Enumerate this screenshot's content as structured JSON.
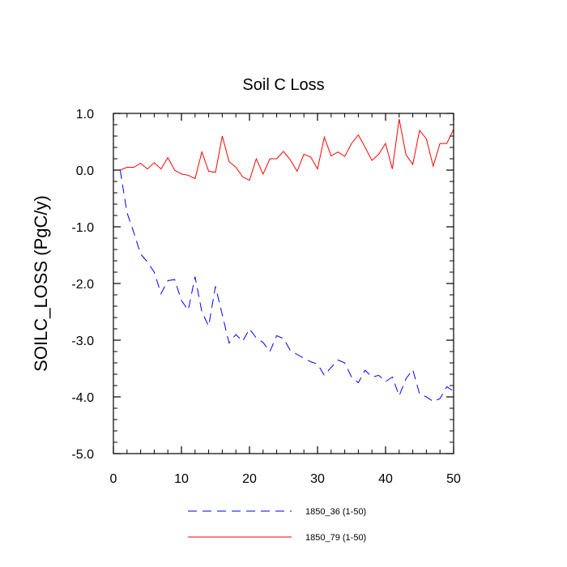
{
  "chart_data": {
    "type": "line",
    "title": "Soil C Loss",
    "xlabel": "",
    "ylabel": "SOILC_LOSS  (PgC/y)",
    "xlim": [
      0,
      50
    ],
    "ylim": [
      -5.0,
      1.0
    ],
    "xticks": [
      0,
      10,
      20,
      30,
      40,
      50
    ],
    "xtick_labels": [
      "0",
      "10",
      "20",
      "30",
      "40",
      "50"
    ],
    "yticks": [
      1.0,
      0.0,
      -1.0,
      -2.0,
      -3.0,
      -4.0,
      -5.0
    ],
    "ytick_labels": [
      "1.0",
      "0.0",
      "-1.0",
      "-2.0",
      "-3.0",
      "-4.0",
      "-5.0"
    ],
    "grid": false,
    "legend_position": "bottom",
    "x": [
      1,
      2,
      3,
      4,
      5,
      6,
      7,
      8,
      9,
      10,
      11,
      12,
      13,
      14,
      15,
      16,
      17,
      18,
      19,
      20,
      21,
      22,
      23,
      24,
      25,
      26,
      27,
      28,
      29,
      30,
      31,
      32,
      33,
      34,
      35,
      36,
      37,
      38,
      39,
      40,
      41,
      42,
      43,
      44,
      45,
      46,
      47,
      48,
      49,
      50
    ],
    "series": [
      {
        "name": "1850_36 (1-50)",
        "color": "#0000ff",
        "style": "dashed",
        "values": [
          0.0,
          -0.75,
          -1.1,
          -1.48,
          -1.62,
          -1.8,
          -2.18,
          -1.95,
          -1.93,
          -2.3,
          -2.47,
          -1.88,
          -2.5,
          -2.75,
          -2.05,
          -2.55,
          -3.05,
          -2.9,
          -3.02,
          -2.8,
          -2.96,
          -3.04,
          -3.2,
          -2.92,
          -2.97,
          -3.18,
          -3.25,
          -3.32,
          -3.38,
          -3.42,
          -3.62,
          -3.48,
          -3.35,
          -3.4,
          -3.65,
          -3.75,
          -3.53,
          -3.65,
          -3.62,
          -3.73,
          -3.65,
          -3.98,
          -3.68,
          -3.52,
          -3.95,
          -4.0,
          -4.08,
          -4.03,
          -3.82,
          -3.9
        ]
      },
      {
        "name": "1850_79 (1-50)",
        "color": "#ff0000",
        "style": "solid",
        "values": [
          0.0,
          0.05,
          0.05,
          0.12,
          0.02,
          0.13,
          0.02,
          0.22,
          0.0,
          -0.07,
          -0.09,
          -0.15,
          0.32,
          -0.02,
          -0.04,
          0.6,
          0.15,
          0.05,
          -0.12,
          -0.18,
          0.2,
          -0.07,
          0.2,
          0.2,
          0.33,
          0.18,
          -0.02,
          0.28,
          0.23,
          0.02,
          0.58,
          0.25,
          0.32,
          0.24,
          0.47,
          0.62,
          0.4,
          0.17,
          0.28,
          0.47,
          0.02,
          0.9,
          0.27,
          0.1,
          0.7,
          0.55,
          0.07,
          0.47,
          0.47,
          0.72
        ]
      }
    ]
  }
}
